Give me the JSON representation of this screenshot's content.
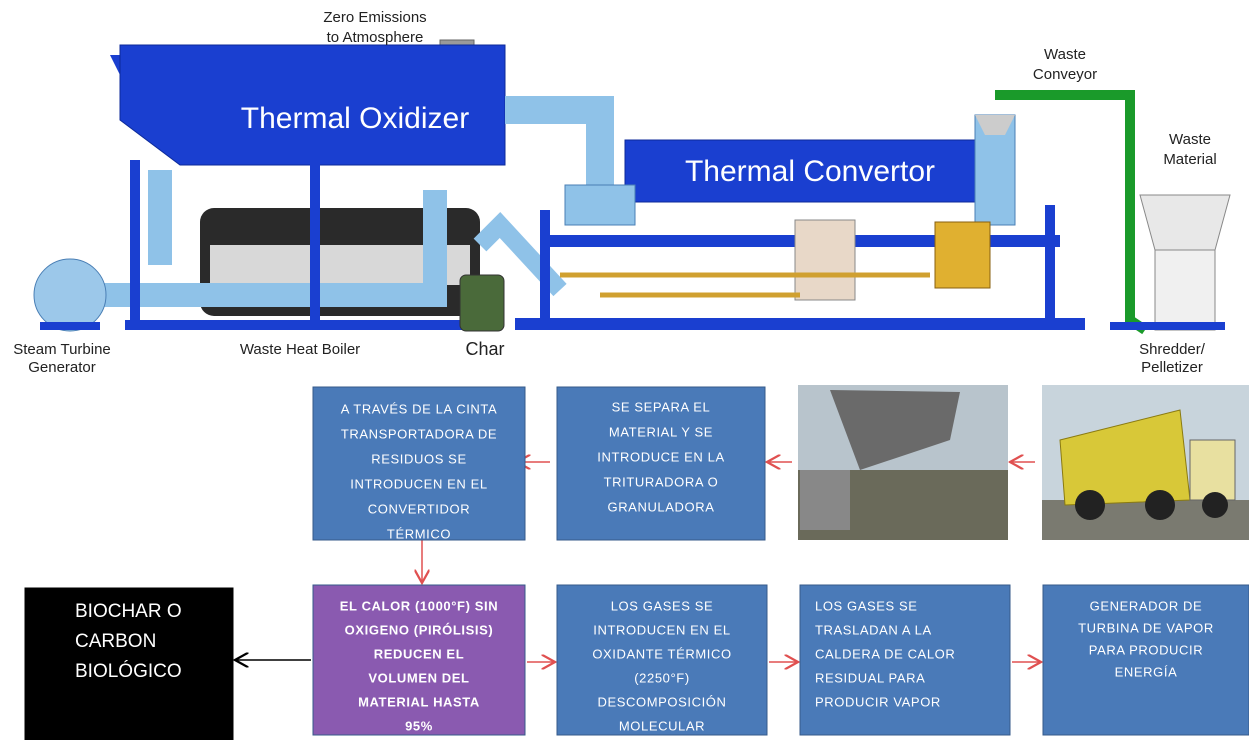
{
  "illustration": {
    "zero_emissions": [
      "Zero Emissions",
      "to Atmosphere"
    ],
    "thermal_oxidizer": "Thermal Oxidizer",
    "thermal_convertor": "Thermal Convertor",
    "waste_conveyor": [
      "Waste",
      "Conveyor"
    ],
    "waste_material": [
      "Waste",
      "Material"
    ],
    "steam_turbine": [
      "Steam Turbine",
      "Generator"
    ],
    "waste_heat_boiler": "Waste Heat Boiler",
    "char": "Char",
    "shredder": [
      "Shredder/",
      "Pelletizer"
    ]
  },
  "steps": [
    {
      "lines": [
        "A TRAVÉS DE LA CINTA",
        "TRANSPORTADORA  DE",
        "RESIDUOS SE",
        "INTRODUCEN  EN EL",
        "CONVERTIDOR",
        "TÉRMICO"
      ]
    },
    {
      "lines": [
        "SE SEPARA EL",
        "MATERIAL Y SE",
        "INTRODUCE  EN LA",
        "TRITURADORA  O",
        "GRANULADORA"
      ]
    },
    {
      "lines": [
        "BIOCHAR O",
        "CARBON",
        "BIOLÓGICO"
      ]
    },
    {
      "lines": [
        "EL CALOR  (1000°F)  SIN",
        "OXIGENO (PIRÓLISIS)",
        "REDUCEN EL",
        "VOLUMEN DEL",
        "MATERIAL HASTA",
        "95%"
      ]
    },
    {
      "lines": [
        "LOS GASES SE",
        "INTRODUCEN  EN EL",
        "OXIDANTE TÉRMICO",
        "(2250°F)",
        "DESCOMPOSICIÓN",
        "MOLECULAR"
      ]
    },
    {
      "lines": [
        "LOS GASES SE",
        "TRASLADAN A LA",
        "CALDERA DE CALOR",
        "RESIDUAL PARA",
        "PRODUCIR  VAPOR"
      ]
    },
    {
      "lines": [
        "GENERADOR  DE",
        "TURBINA  DE VAPOR",
        "PARA PRODUCIR",
        "ENERGÍA"
      ]
    }
  ]
}
